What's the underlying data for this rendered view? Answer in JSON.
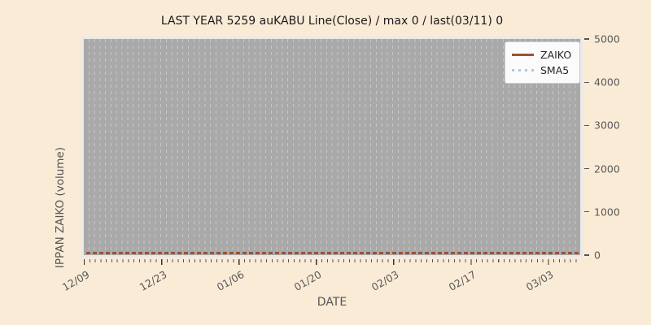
{
  "figure": {
    "background_color": "#faebd7",
    "plot_background_color": "#a9a9a9",
    "grid_color": "#c6c6c6",
    "tick_label_color": "#595959"
  },
  "chart_data": {
    "type": "line",
    "title": "LAST YEAR 5259 auKABU Line(Close) / max 0 / last(03/11) 0",
    "xlabel": "DATE",
    "ylabel": "IPPAN ZAIKO (volume)",
    "x_tick_labels": [
      "12/09",
      "12/23",
      "01/06",
      "01/20",
      "02/03",
      "02/17",
      "03/03"
    ],
    "x_minor_tick_interval": "daily",
    "x_major_tick_interval_days": 14,
    "x_range": [
      "12/09",
      "03/11"
    ],
    "y_ticks": [
      "0",
      "1000",
      "2000",
      "3000",
      "4000",
      "5000"
    ],
    "y_tick_values": [
      0,
      1000,
      2000,
      3000,
      4000,
      5000
    ],
    "ylim": [
      0,
      5000
    ],
    "y_axis_side": "right",
    "grid": "vertical dashed gridlines at daily interval, no horizontal gridlines",
    "legend_position": "upper right",
    "series": [
      {
        "name": "ZAIKO",
        "color": "#a0522d",
        "line_style": "solid",
        "values_constant": 0,
        "description": "flat line at 0 across entire date range"
      },
      {
        "name": "SMA5",
        "color": "#a6cbe3",
        "line_style": "dotted",
        "values_constant": 0,
        "description": "flat dotted line at 0 across entire date range"
      }
    ],
    "annotations": {
      "max": "0",
      "last_date": "03/11",
      "last_value": "0"
    }
  }
}
